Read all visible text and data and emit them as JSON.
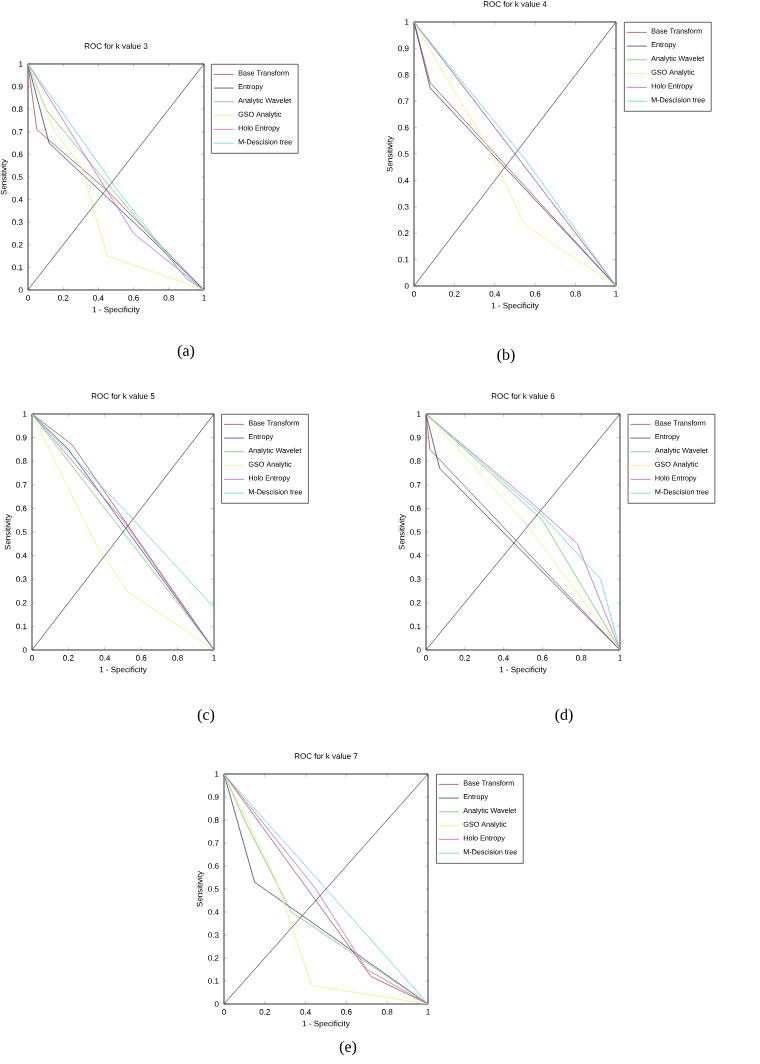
{
  "chart_data": [
    {
      "type": "line",
      "title": "ROC for k value 3",
      "xlabel": "1 - Specificity",
      "ylabel": "Sensitivity",
      "annotations": [
        "(a)"
      ],
      "xlim": [
        0,
        1
      ],
      "ylim": [
        0,
        1
      ],
      "xticks": [
        0,
        0.2,
        0.4,
        0.6,
        0.8,
        1
      ],
      "yticks": [
        0,
        0.1,
        0.2,
        0.3,
        0.4,
        0.5,
        0.6,
        0.7,
        0.8,
        0.9,
        1
      ],
      "legend": "right",
      "series": [
        {
          "name": "Base Transform",
          "color": "#b05050",
          "x": [
            0,
            0.05,
            0.45,
            1
          ],
          "values": [
            1,
            0.71,
            0.44,
            0
          ]
        },
        {
          "name": "Entropy",
          "color": "#404080",
          "x": [
            0,
            0.12,
            0.6,
            1
          ],
          "values": [
            1,
            0.65,
            0.3,
            0
          ]
        },
        {
          "name": "Analytic Wavelet",
          "color": "#70cc70",
          "x": [
            0,
            0.1,
            0.9,
            1
          ],
          "values": [
            1,
            0.8,
            0.05,
            0
          ]
        },
        {
          "name": "GSO Analytic",
          "color": "#f0f080",
          "x": [
            0,
            0.15,
            0.3,
            0.45,
            0.9,
            1
          ],
          "values": [
            1,
            0.7,
            0.55,
            0.15,
            0.03,
            0
          ]
        },
        {
          "name": "Holo Entropy",
          "color": "#cc66cc",
          "x": [
            0,
            0.6,
            1
          ],
          "values": [
            1,
            0.25,
            0
          ]
        },
        {
          "name": "M-Descision tree",
          "color": "#60d8d8",
          "x": [
            0,
            0.5,
            0.9,
            1
          ],
          "values": [
            1,
            0.45,
            0.05,
            0
          ]
        },
        {
          "color": "#505050",
          "x": [
            0,
            1
          ],
          "values": [
            0,
            1
          ]
        }
      ]
    },
    {
      "type": "line",
      "title": "ROC for k value 4",
      "xlabel": "1 - Specificity",
      "ylabel": "Sensitivity",
      "annotations": [
        "(b)"
      ],
      "xlim": [
        0,
        1
      ],
      "ylim": [
        0,
        1
      ],
      "xticks": [
        0,
        0.2,
        0.4,
        0.6,
        0.8,
        1
      ],
      "yticks": [
        0,
        0.1,
        0.2,
        0.3,
        0.4,
        0.5,
        0.6,
        0.7,
        0.8,
        0.9,
        1
      ],
      "legend": "right",
      "series": [
        {
          "name": "Base Transform",
          "color": "#b05050",
          "x": [
            0,
            0.08,
            1
          ],
          "values": [
            1,
            0.77,
            0
          ]
        },
        {
          "name": "Entropy",
          "color": "#404080",
          "x": [
            0,
            0.08,
            1
          ],
          "values": [
            1,
            0.75,
            0
          ]
        },
        {
          "name": "Analytic Wavelet",
          "color": "#70cc70",
          "x": [
            0,
            1
          ],
          "values": [
            1,
            0
          ]
        },
        {
          "name": "GSO Analytic",
          "color": "#f0f080",
          "x": [
            0,
            0.15,
            0.35,
            0.55,
            1
          ],
          "values": [
            1,
            0.8,
            0.55,
            0.23,
            0
          ]
        },
        {
          "name": "Holo Entropy",
          "color": "#cc66cc",
          "x": [
            0,
            0.5,
            1
          ],
          "values": [
            1,
            0.5,
            0
          ]
        },
        {
          "name": "M-Descision tree",
          "color": "#60d8d8",
          "x": [
            0,
            0.55,
            1
          ],
          "values": [
            1,
            0.48,
            0
          ]
        },
        {
          "color": "#505050",
          "x": [
            0,
            1
          ],
          "values": [
            0,
            1
          ]
        }
      ]
    },
    {
      "type": "line",
      "title": "ROC for k value 5",
      "xlabel": "1 - Specificity",
      "ylabel": "Sensitivity",
      "annotations": [
        "(c)"
      ],
      "xlim": [
        0,
        1
      ],
      "ylim": [
        0,
        1
      ],
      "xticks": [
        0,
        0.2,
        0.4,
        0.6,
        0.8,
        1
      ],
      "yticks": [
        0,
        0.1,
        0.2,
        0.3,
        0.4,
        0.5,
        0.6,
        0.7,
        0.8,
        0.9,
        1
      ],
      "legend": "right",
      "series": [
        {
          "name": "Base Transform",
          "color": "#b05050",
          "x": [
            0,
            0.22,
            1
          ],
          "values": [
            1,
            0.87,
            0
          ]
        },
        {
          "name": "Entropy",
          "color": "#404080",
          "x": [
            0,
            0.2,
            1
          ],
          "values": [
            1,
            0.85,
            0
          ]
        },
        {
          "name": "Analytic Wavelet",
          "color": "#70cc70",
          "x": [
            0,
            0.45,
            1
          ],
          "values": [
            1,
            0.55,
            0
          ]
        },
        {
          "name": "GSO Analytic",
          "color": "#f0f080",
          "x": [
            0,
            0.35,
            0.52,
            1
          ],
          "values": [
            1,
            0.45,
            0.25,
            0
          ]
        },
        {
          "name": "Holo Entropy",
          "color": "#cc66cc",
          "x": [
            0,
            0.5,
            1
          ],
          "values": [
            1,
            0.55,
            0
          ]
        },
        {
          "name": "M-Descision tree",
          "color": "#60d8d8",
          "x": [
            0,
            0.5,
            1,
            1
          ],
          "values": [
            1,
            0.6,
            0.18,
            0
          ]
        },
        {
          "color": "#505050",
          "x": [
            0,
            1
          ],
          "values": [
            0,
            1
          ]
        }
      ]
    },
    {
      "type": "line",
      "title": "ROC for k value 6",
      "xlabel": "1 - Specificity",
      "ylabel": "Sensitivity",
      "annotations": [
        "(d)"
      ],
      "xlim": [
        0,
        1
      ],
      "ylim": [
        0,
        1
      ],
      "xticks": [
        0,
        0.2,
        0.4,
        0.6,
        0.8,
        1
      ],
      "yticks": [
        0,
        0.1,
        0.2,
        0.3,
        0.4,
        0.5,
        0.6,
        0.7,
        0.8,
        0.9,
        1
      ],
      "legend": "right",
      "series": [
        {
          "name": "Base Transform",
          "color": "#b05050",
          "x": [
            0,
            0.02,
            1
          ],
          "values": [
            1,
            0.85,
            0
          ]
        },
        {
          "name": "Entropy",
          "color": "#404080",
          "x": [
            0,
            0.07,
            1
          ],
          "values": [
            1,
            0.77,
            0
          ]
        },
        {
          "name": "Analytic Wavelet",
          "color": "#70cc70",
          "x": [
            0,
            0.6,
            1
          ],
          "values": [
            1,
            0.55,
            0
          ]
        },
        {
          "name": "GSO Analytic",
          "color": "#f0f080",
          "x": [
            0,
            0.5,
            1
          ],
          "values": [
            1,
            0.55,
            0
          ]
        },
        {
          "name": "Holo Entropy",
          "color": "#cc66cc",
          "x": [
            0,
            0.55,
            0.78,
            1
          ],
          "values": [
            1,
            0.62,
            0.45,
            0
          ]
        },
        {
          "name": "M-Descision tree",
          "color": "#60d8d8",
          "x": [
            0,
            0.6,
            0.9,
            1
          ],
          "values": [
            1,
            0.57,
            0.3,
            0
          ]
        },
        {
          "color": "#505050",
          "x": [
            0,
            1
          ],
          "values": [
            0,
            1
          ]
        }
      ]
    },
    {
      "type": "line",
      "title": "ROC for k value 7",
      "xlabel": "1 - Specificity",
      "ylabel": "Sensitivity",
      "annotations": [
        "(e)"
      ],
      "xlim": [
        0,
        1
      ],
      "ylim": [
        0,
        1
      ],
      "xticks": [
        0,
        0.2,
        0.4,
        0.6,
        0.8,
        1
      ],
      "yticks": [
        0,
        0.1,
        0.2,
        0.3,
        0.4,
        0.5,
        0.6,
        0.7,
        0.8,
        0.9,
        1
      ],
      "legend": "right",
      "series": [
        {
          "name": "Base Transform",
          "color": "#b05050",
          "x": [
            0,
            0.72,
            1
          ],
          "values": [
            1,
            0.12,
            0
          ]
        },
        {
          "name": "Entropy",
          "color": "#404080",
          "x": [
            0,
            0.15,
            1
          ],
          "values": [
            1,
            0.53,
            0
          ]
        },
        {
          "name": "Analytic Wavelet",
          "color": "#70cc70",
          "x": [
            0,
            0.1,
            0.33,
            1
          ],
          "values": [
            1,
            0.8,
            0.4,
            0
          ]
        },
        {
          "name": "GSO Analytic",
          "color": "#f0f080",
          "x": [
            0,
            0.25,
            0.43,
            1
          ],
          "values": [
            1,
            0.55,
            0.08,
            0
          ]
        },
        {
          "name": "Holo Entropy",
          "color": "#cc66cc",
          "x": [
            0,
            0.45,
            0.7,
            1
          ],
          "values": [
            1,
            0.5,
            0.15,
            0
          ]
        },
        {
          "name": "M-Descision tree",
          "color": "#60d8d8",
          "x": [
            0,
            0.9,
            1
          ],
          "values": [
            1,
            0.1,
            0
          ]
        },
        {
          "color": "#505050",
          "x": [
            0,
            1
          ],
          "values": [
            0,
            1
          ]
        }
      ]
    }
  ]
}
